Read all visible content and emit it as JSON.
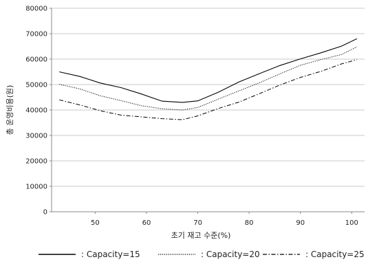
{
  "chart_data": {
    "type": "line",
    "title": "",
    "xlabel": "초기 재고 수준(%)",
    "ylabel": "총 운영비용(원)",
    "xlim": [
      41.5,
      102.5
    ],
    "ylim": [
      0,
      80000
    ],
    "xticks": [
      50,
      60,
      70,
      80,
      90,
      100
    ],
    "yticks": [
      0,
      10000,
      20000,
      30000,
      40000,
      50000,
      60000,
      70000,
      80000
    ],
    "grid": "horizontal",
    "legend_position": "bottom",
    "x": [
      43,
      47,
      51,
      55,
      59,
      63,
      67,
      70,
      74,
      78,
      82,
      86,
      90,
      94,
      98,
      101
    ],
    "series": [
      {
        "name": "Capacity=15",
        "legend_label": ": Capacity=15",
        "color": "#000000",
        "style": "solid",
        "values": [
          55000,
          53200,
          50600,
          48800,
          46300,
          43500,
          43000,
          43600,
          47000,
          51000,
          54300,
          57500,
          60100,
          62500,
          65100,
          68000
        ]
      },
      {
        "name": "Capacity=20",
        "legend_label": ": Capacity=20",
        "color": "#000000",
        "style": "dotted",
        "values": [
          50100,
          48300,
          45600,
          43700,
          41700,
          40500,
          40000,
          41000,
          44300,
          47500,
          50700,
          54200,
          57600,
          59800,
          61800,
          64800
        ]
      },
      {
        "name": "Capacity=25",
        "legend_label": ": Capacity=25",
        "color": "#000000",
        "style": "dashdot",
        "values": [
          44000,
          42000,
          39700,
          38000,
          37300,
          36600,
          36200,
          37700,
          40600,
          43100,
          46400,
          49800,
          52800,
          55200,
          58100,
          59800
        ]
      }
    ]
  }
}
